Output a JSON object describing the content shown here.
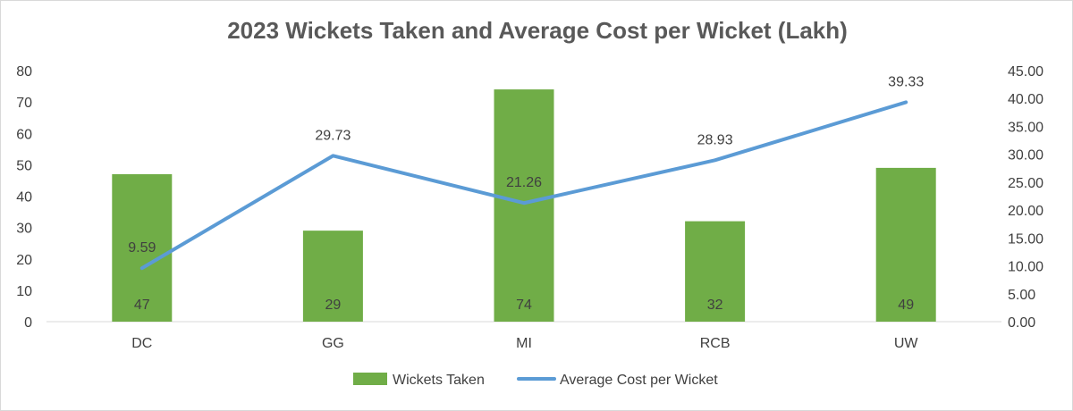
{
  "chart_data": {
    "type": "bar",
    "title": "2023 Wickets Taken and Average Cost per Wicket (Lakh)",
    "categories": [
      "DC",
      "GG",
      "MI",
      "RCB",
      "UW"
    ],
    "series": [
      {
        "name": "Wickets Taken",
        "type": "bar",
        "axis": "left",
        "color": "#70ad47",
        "values": [
          47,
          29,
          74,
          32,
          49
        ],
        "labels": [
          "47",
          "29",
          "74",
          "32",
          "49"
        ]
      },
      {
        "name": "Average Cost per Wicket",
        "type": "line",
        "axis": "right",
        "color": "#5b9bd5",
        "values": [
          9.59,
          29.73,
          21.26,
          28.93,
          39.33
        ],
        "labels": [
          "9.59",
          "29.73",
          "21.26",
          "28.93",
          "39.33"
        ]
      }
    ],
    "y_left": {
      "min": 0,
      "max": 80,
      "ticks": [
        "0",
        "10",
        "20",
        "30",
        "40",
        "50",
        "60",
        "70",
        "80"
      ]
    },
    "y_right": {
      "min": 0,
      "max": 45,
      "ticks": [
        "0.00",
        "5.00",
        "10.00",
        "15.00",
        "20.00",
        "25.00",
        "30.00",
        "35.00",
        "40.00",
        "45.00"
      ]
    },
    "grid": false,
    "legend_position": "bottom"
  }
}
